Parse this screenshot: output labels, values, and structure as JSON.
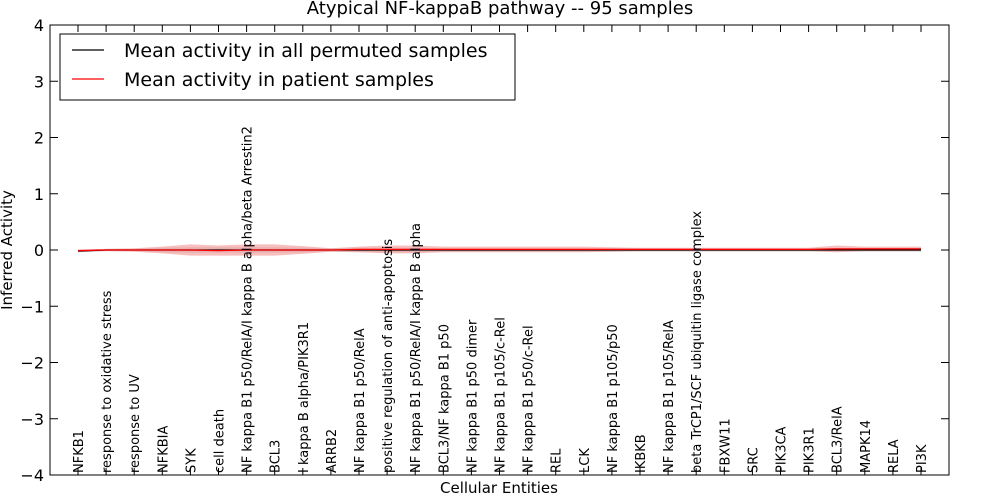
{
  "chart_data": {
    "type": "line",
    "title": "Atypical NF-kappaB pathway -- 95 samples",
    "xlabel": "Cellular Entities",
    "ylabel": "Inferred Activity",
    "ylim": [
      -4,
      4
    ],
    "yticks": [
      "−4",
      "−3",
      "−2",
      "−1",
      "0",
      "1",
      "2",
      "3",
      "4"
    ],
    "grid": false,
    "legend_position": "top-left",
    "categories": [
      "NFKB1",
      "response to oxidative stress",
      "response to UV",
      "NFKBIA",
      "SYK",
      "cell death",
      "NF kappa B1 p50/RelA/I kappa B alpha/beta Arrestin2",
      "BCL3",
      "I kappa B alpha/PIK3R1",
      "ARRB2",
      "NF kappa B1 p50/RelA",
      "positive regulation of anti-apoptosis",
      "NF kappa B1 p50/RelA/I kappa B alpha",
      "BCL3/NF kappa B1 p50",
      "NF kappa B1 p50 dimer",
      "NF kappa B1 p105/c-Rel",
      "NF kappa B1 p50/c-Rel",
      "REL",
      "LCK",
      "NF kappa B1 p105/p50",
      "IKBKB",
      "NF kappa B1 p105/RelA",
      "beta TrCP1/SCF ubiquitin ligase complex",
      "FBXW11",
      "SRC",
      "PIK3CA",
      "PIK3R1",
      "BCL3/RelA",
      "MAPK14",
      "RELA",
      "PI3K"
    ],
    "series": [
      {
        "name": "Mean activity in all permuted samples",
        "color": "#000000",
        "values": [
          -0.02,
          0.0,
          0.0,
          0.0,
          0.0,
          0.0,
          0.0,
          0.0,
          0.0,
          0.0,
          0.0,
          0.0,
          0.0,
          0.0,
          0.0,
          0.0,
          0.0,
          0.0,
          0.0,
          0.0,
          0.0,
          0.0,
          0.0,
          0.0,
          0.0,
          0.0,
          0.0,
          0.0,
          0.0,
          0.0,
          0.0
        ],
        "band": [
          0.02,
          0.02,
          0.02,
          0.04,
          0.05,
          0.05,
          0.05,
          0.05,
          0.04,
          0.03,
          0.04,
          0.04,
          0.04,
          0.03,
          0.03,
          0.03,
          0.03,
          0.03,
          0.03,
          0.03,
          0.03,
          0.03,
          0.03,
          0.03,
          0.03,
          0.03,
          0.03,
          0.03,
          0.03,
          0.03,
          0.03
        ],
        "band_color": "#c8c8c8"
      },
      {
        "name": "Mean activity in patient samples",
        "color": "#ff0000",
        "values": [
          -0.01,
          0.0,
          0.0,
          0.0,
          0.0,
          -0.01,
          0.0,
          0.0,
          0.0,
          0.0,
          0.01,
          0.01,
          0.01,
          0.01,
          0.01,
          0.01,
          0.01,
          0.01,
          0.01,
          0.01,
          0.01,
          0.01,
          0.01,
          0.01,
          0.01,
          0.01,
          0.01,
          0.02,
          0.02,
          0.02,
          0.02
        ],
        "band": [
          0.02,
          0.02,
          0.03,
          0.06,
          0.1,
          0.09,
          0.1,
          0.1,
          0.07,
          0.03,
          0.05,
          0.07,
          0.07,
          0.05,
          0.05,
          0.05,
          0.05,
          0.05,
          0.05,
          0.04,
          0.03,
          0.03,
          0.03,
          0.03,
          0.03,
          0.03,
          0.03,
          0.06,
          0.04,
          0.04,
          0.04
        ],
        "band_color": "#f28a8a"
      }
    ]
  }
}
